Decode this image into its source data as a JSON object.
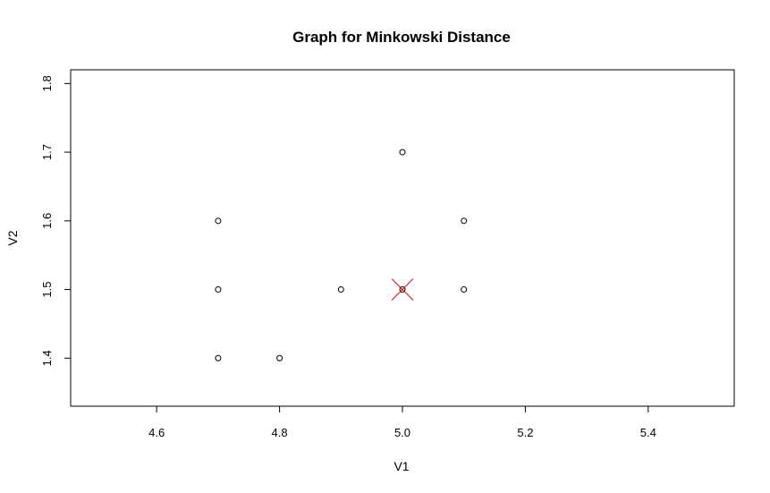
{
  "chart_data": {
    "type": "scatter",
    "title": "Graph for Minkowski Distance",
    "xlabel": "V1",
    "ylabel": "V2",
    "xlim": [
      4.46,
      5.54
    ],
    "ylim": [
      1.33,
      1.82
    ],
    "x_ticks": [
      4.6,
      4.8,
      5.0,
      5.2,
      5.4
    ],
    "x_tick_labels": [
      "4.6",
      "4.8",
      "5.0",
      "5.2",
      "5.4"
    ],
    "y_ticks": [
      1.4,
      1.5,
      1.6,
      1.7,
      1.8
    ],
    "y_tick_labels": [
      "1.4",
      "1.5",
      "1.6",
      "1.7",
      "1.8"
    ],
    "grid": false,
    "series": [
      {
        "marker": "open-circle",
        "color": "#000000",
        "points": [
          {
            "x": 4.7,
            "y": 1.6
          },
          {
            "x": 4.7,
            "y": 1.5
          },
          {
            "x": 4.7,
            "y": 1.4
          },
          {
            "x": 4.8,
            "y": 1.4
          },
          {
            "x": 4.9,
            "y": 1.5
          },
          {
            "x": 5.0,
            "y": 1.7
          },
          {
            "x": 5.0,
            "y": 1.5
          },
          {
            "x": 5.1,
            "y": 1.6
          },
          {
            "x": 5.1,
            "y": 1.5
          }
        ]
      },
      {
        "marker": "x-cross",
        "color": "#cc0000",
        "points": [
          {
            "x": 5.0,
            "y": 1.5
          }
        ]
      }
    ]
  }
}
